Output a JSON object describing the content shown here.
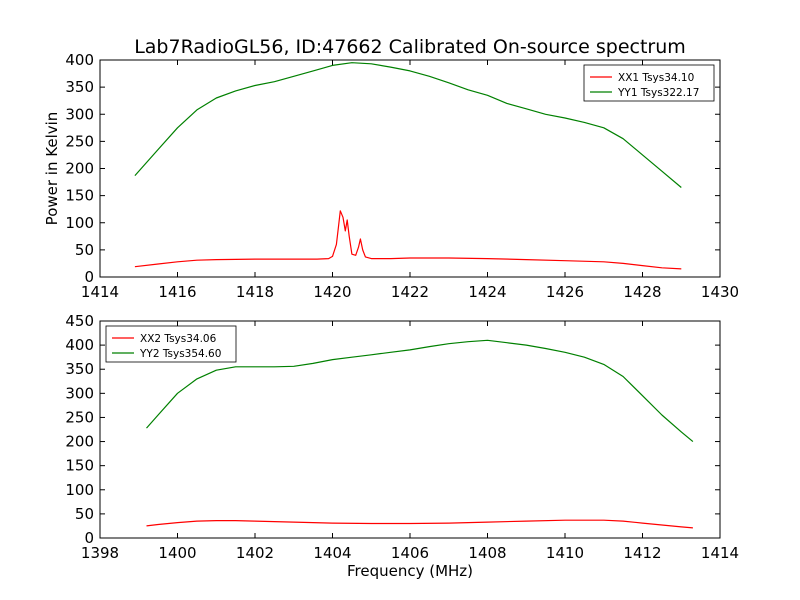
{
  "figure": {
    "title": "Lab7RadioGL56, ID:47662 Calibrated On-source spectrum",
    "xlabel": "Frequency (MHz)"
  },
  "colors": {
    "red": "#ff0000",
    "green": "#008000"
  },
  "chart_data": [
    {
      "type": "line",
      "title": "Lab7RadioGL56, ID:47662 Calibrated On-source spectrum",
      "xlabel": "",
      "ylabel": "Power in Kelvin",
      "xlim": [
        1414,
        1430
      ],
      "ylim": [
        0,
        400
      ],
      "xticks": [
        1414,
        1416,
        1418,
        1420,
        1422,
        1424,
        1426,
        1428,
        1430
      ],
      "yticks": [
        0,
        50,
        100,
        150,
        200,
        250,
        300,
        350,
        400
      ],
      "legend": "top-right",
      "series": [
        {
          "name": "XX1 Tsys34.10",
          "color": "#ff0000",
          "x": [
            1414.9,
            1415.5,
            1416.0,
            1416.5,
            1417.0,
            1418.0,
            1419.0,
            1419.6,
            1419.9,
            1420.0,
            1420.1,
            1420.15,
            1420.2,
            1420.27,
            1420.33,
            1420.38,
            1420.43,
            1420.5,
            1420.6,
            1420.67,
            1420.72,
            1420.78,
            1420.85,
            1421.0,
            1421.5,
            1422.0,
            1423.0,
            1424.0,
            1425.0,
            1426.0,
            1427.0,
            1427.5,
            1428.0,
            1428.5,
            1429.0
          ],
          "y": [
            19,
            24,
            28,
            31,
            32,
            33,
            33,
            33,
            34,
            38,
            60,
            90,
            122,
            110,
            85,
            105,
            75,
            42,
            40,
            55,
            70,
            50,
            37,
            34,
            34,
            35,
            35,
            34,
            32,
            30,
            28,
            25,
            21,
            17,
            15
          ]
        },
        {
          "name": "YY1 Tsys322.17",
          "color": "#008000",
          "x": [
            1414.9,
            1415.5,
            1416.0,
            1416.5,
            1417.0,
            1417.5,
            1418.0,
            1418.5,
            1419.0,
            1419.5,
            1420.0,
            1420.5,
            1421.0,
            1421.5,
            1422.0,
            1422.5,
            1423.0,
            1423.5,
            1424.0,
            1424.5,
            1425.0,
            1425.5,
            1426.0,
            1426.5,
            1427.0,
            1427.5,
            1428.0,
            1428.5,
            1429.0
          ],
          "y": [
            187,
            235,
            275,
            308,
            330,
            343,
            353,
            360,
            370,
            380,
            390,
            395,
            393,
            387,
            380,
            370,
            358,
            345,
            335,
            320,
            310,
            300,
            293,
            285,
            275,
            255,
            225,
            195,
            165
          ]
        }
      ]
    },
    {
      "type": "line",
      "title": "",
      "xlabel": "Frequency (MHz)",
      "ylabel": "",
      "xlim": [
        1398,
        1414
      ],
      "ylim": [
        0,
        450
      ],
      "xticks": [
        1398,
        1400,
        1402,
        1404,
        1406,
        1408,
        1410,
        1412,
        1414
      ],
      "yticks": [
        0,
        50,
        100,
        150,
        200,
        250,
        300,
        350,
        400,
        450
      ],
      "legend": "top-left",
      "series": [
        {
          "name": "XX2 Tsys34.06",
          "color": "#ff0000",
          "x": [
            1399.2,
            1399.5,
            1400.0,
            1400.5,
            1401.0,
            1401.5,
            1402.0,
            1403.0,
            1404.0,
            1405.0,
            1406.0,
            1407.0,
            1408.0,
            1409.0,
            1410.0,
            1411.0,
            1411.5,
            1412.0,
            1412.5,
            1413.0,
            1413.3
          ],
          "y": [
            25,
            28,
            32,
            35,
            36,
            36,
            35,
            33,
            31,
            30,
            30,
            31,
            33,
            35,
            37,
            37,
            35,
            31,
            27,
            23,
            21
          ]
        },
        {
          "name": "YY2 Tsys354.60",
          "color": "#008000",
          "x": [
            1399.2,
            1399.5,
            1400.0,
            1400.5,
            1401.0,
            1401.5,
            1402.0,
            1402.5,
            1403.0,
            1403.5,
            1404.0,
            1404.5,
            1405.0,
            1405.5,
            1406.0,
            1406.5,
            1407.0,
            1407.5,
            1408.0,
            1408.5,
            1409.0,
            1409.5,
            1410.0,
            1410.5,
            1411.0,
            1411.5,
            1412.0,
            1412.5,
            1413.0,
            1413.3
          ],
          "y": [
            228,
            255,
            300,
            330,
            348,
            355,
            355,
            355,
            356,
            362,
            370,
            375,
            380,
            385,
            390,
            397,
            403,
            407,
            410,
            405,
            400,
            393,
            385,
            375,
            360,
            335,
            295,
            255,
            220,
            200
          ]
        }
      ]
    }
  ]
}
